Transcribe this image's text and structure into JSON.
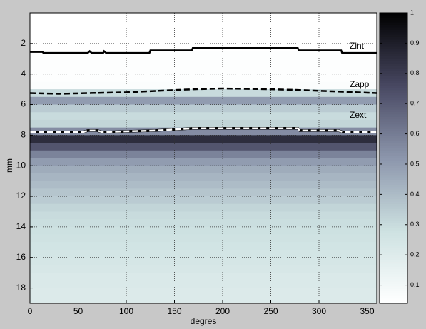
{
  "chart_data": {
    "type": "heatmap",
    "xlabel": "degres",
    "ylabel": "mm",
    "xlim": [
      0,
      360
    ],
    "xticks": [
      0,
      50,
      100,
      150,
      200,
      250,
      300,
      350
    ],
    "ylim": [
      0,
      19
    ],
    "yticks": [
      2,
      4,
      6,
      8,
      10,
      12,
      14,
      16,
      18
    ],
    "y_reversed": true,
    "grid": true,
    "colormap": "bone",
    "clim": [
      0.04,
      1
    ],
    "cticks": [
      0.1,
      0.2,
      0.3,
      0.4,
      0.5,
      0.6,
      0.7,
      0.8,
      0.9,
      1
    ],
    "depth_edges": [
      0,
      0.5,
      1,
      1.5,
      2,
      2.5,
      3,
      3.5,
      4,
      4.5,
      5,
      5.5,
      6,
      6.5,
      7,
      7.5,
      8,
      8.5,
      9,
      9.5,
      10,
      10.5,
      11,
      11.5,
      12,
      12.5,
      13,
      13.5,
      14,
      14.5,
      15,
      15.5,
      16,
      16.5,
      17,
      17.5,
      18,
      18.5,
      19
    ],
    "intensity": [
      0.04,
      0.04,
      0.04,
      0.04,
      0.04,
      0.05,
      0.05,
      0.05,
      0.05,
      0.06,
      0.3,
      0.5,
      0.35,
      0.3,
      0.32,
      0.55,
      0.85,
      0.72,
      0.58,
      0.5,
      0.45,
      0.42,
      0.4,
      0.37,
      0.35,
      0.32,
      0.3,
      0.29,
      0.28,
      0.27,
      0.26,
      0.25,
      0.24,
      0.23,
      0.22,
      0.22,
      0.21,
      0.21
    ],
    "series": [
      {
        "name": "Zint",
        "color": "#000000",
        "style": "solid",
        "x": [
          0,
          13,
          14,
          60,
          62,
          64,
          76,
          77,
          79,
          124,
          125,
          168,
          169,
          278,
          279,
          323,
          324,
          360
        ],
        "y": [
          2.55,
          2.55,
          2.62,
          2.62,
          2.5,
          2.62,
          2.62,
          2.5,
          2.62,
          2.62,
          2.45,
          2.45,
          2.3,
          2.3,
          2.45,
          2.45,
          2.62,
          2.62
        ]
      },
      {
        "name": "Zapp",
        "color": "#000000",
        "style": "dashed",
        "x": [
          0,
          30,
          60,
          100,
          150,
          170,
          200,
          250,
          280,
          320,
          360
        ],
        "y": [
          5.25,
          5.3,
          5.25,
          5.2,
          5.05,
          5.0,
          4.95,
          5.0,
          5.05,
          5.15,
          5.25
        ]
      },
      {
        "name": "Zext",
        "color": "#ffffff",
        "style": "dashed",
        "x": [
          0,
          55,
          60,
          70,
          75,
          100,
          130,
          170,
          200,
          250,
          278,
          280,
          320,
          325,
          360
        ],
        "y": [
          7.8,
          7.8,
          7.7,
          7.7,
          7.8,
          7.75,
          7.7,
          7.55,
          7.55,
          7.55,
          7.55,
          7.7,
          7.7,
          7.8,
          7.8
        ]
      }
    ]
  }
}
